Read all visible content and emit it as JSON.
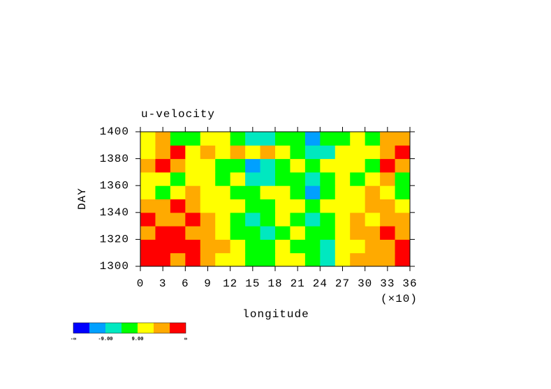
{
  "chart_data": {
    "type": "heatmap",
    "title": "u-velocity",
    "x_label": "longitude",
    "x_scale_label": "(×10)",
    "y_label": "DAY",
    "xlim": [
      0,
      36
    ],
    "xticks": [
      0,
      3,
      6,
      9,
      12,
      15,
      18,
      21,
      24,
      27,
      30,
      33,
      36
    ],
    "ylim": [
      1300,
      1400
    ],
    "yticks": [
      1300,
      1320,
      1340,
      1360,
      1380,
      1400
    ],
    "x": [
      1,
      3,
      5,
      7,
      9,
      11,
      13,
      15,
      17,
      19,
      21,
      23,
      25,
      27,
      29,
      31,
      33,
      35
    ],
    "y": [
      1305,
      1315,
      1325,
      1335,
      1345,
      1355,
      1365,
      1375,
      1385,
      1395
    ],
    "z": [
      [
        6,
        6,
        5,
        6,
        5,
        4,
        4,
        3,
        3,
        4,
        4,
        3,
        2,
        4,
        5,
        5,
        5,
        6
      ],
      [
        6,
        6,
        6,
        6,
        5,
        5,
        4,
        3,
        3,
        4,
        3,
        3,
        2,
        4,
        4,
        5,
        5,
        6
      ],
      [
        5,
        6,
        6,
        5,
        5,
        4,
        3,
        3,
        2,
        3,
        4,
        3,
        3,
        4,
        5,
        5,
        6,
        5
      ],
      [
        6,
        5,
        5,
        6,
        5,
        4,
        3,
        2,
        3,
        4,
        3,
        2,
        3,
        4,
        5,
        4,
        5,
        5
      ],
      [
        5,
        5,
        6,
        5,
        4,
        4,
        4,
        3,
        3,
        4,
        4,
        3,
        4,
        4,
        4,
        5,
        5,
        4
      ],
      [
        4,
        3,
        4,
        5,
        4,
        4,
        3,
        3,
        4,
        4,
        3,
        1,
        3,
        4,
        4,
        5,
        4,
        3
      ],
      [
        4,
        4,
        3,
        4,
        4,
        3,
        4,
        2,
        2,
        3,
        3,
        2,
        3,
        4,
        3,
        4,
        5,
        3
      ],
      [
        5,
        6,
        5,
        4,
        4,
        3,
        3,
        1,
        2,
        3,
        4,
        3,
        4,
        4,
        4,
        3,
        6,
        5
      ],
      [
        4,
        5,
        6,
        4,
        5,
        4,
        5,
        4,
        5,
        4,
        3,
        2,
        2,
        4,
        4,
        4,
        5,
        6
      ],
      [
        4,
        5,
        3,
        3,
        4,
        4,
        3,
        2,
        2,
        3,
        3,
        1,
        3,
        3,
        4,
        3,
        5,
        5
      ]
    ],
    "colors": [
      "#0000ff",
      "#00a0ff",
      "#00e8c0",
      "#00ff00",
      "#ffff00",
      "#ffaa00",
      "#ff0000"
    ],
    "colorbar_labels": [
      "-∞",
      {
        "value": -9,
        "label": "-9.00"
      },
      {
        "value": 9,
        "label": "9.00"
      },
      "∞"
    ]
  }
}
